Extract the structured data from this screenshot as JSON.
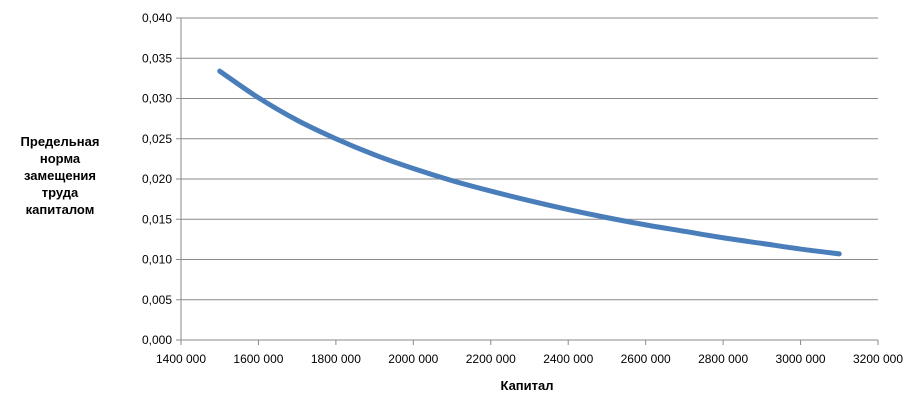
{
  "chart_data": {
    "type": "line",
    "title": "",
    "xlabel": "Капитал",
    "ylabel_lines": [
      "Предельная",
      "норма",
      "замещения",
      "труда",
      "капиталом"
    ],
    "xlim": [
      1400000,
      3200000
    ],
    "ylim": [
      0,
      0.04
    ],
    "grid": {
      "y": true,
      "x": false
    },
    "x_ticks": [
      "1400 000",
      "1600 000",
      "1800 000",
      "2000 000",
      "2200 000",
      "2400 000",
      "2600 000",
      "2800 000",
      "3000 000",
      "3200 000"
    ],
    "x_tick_values": [
      1400000,
      1600000,
      1800000,
      2000000,
      2200000,
      2400000,
      2600000,
      2800000,
      3000000,
      3200000
    ],
    "y_ticks": [
      "0,000",
      "0,005",
      "0,010",
      "0,015",
      "0,020",
      "0,025",
      "0,030",
      "0,035",
      "0,040"
    ],
    "y_tick_values": [
      0,
      0.005,
      0.01,
      0.015,
      0.02,
      0.025,
      0.03,
      0.035,
      0.04
    ],
    "series": [
      {
        "color": "#4A7EBB",
        "x": [
          1500000,
          1600000,
          1700000,
          1800000,
          1900000,
          2000000,
          2100000,
          2200000,
          2300000,
          2400000,
          2500000,
          2600000,
          2700000,
          2800000,
          2900000,
          3000000,
          3100000
        ],
        "y": [
          0.0334,
          0.0301,
          0.0273,
          0.025,
          0.023,
          0.0213,
          0.0198,
          0.0185,
          0.0173,
          0.0162,
          0.0152,
          0.0143,
          0.0135,
          0.0127,
          0.012,
          0.0113,
          0.0107
        ]
      }
    ]
  }
}
